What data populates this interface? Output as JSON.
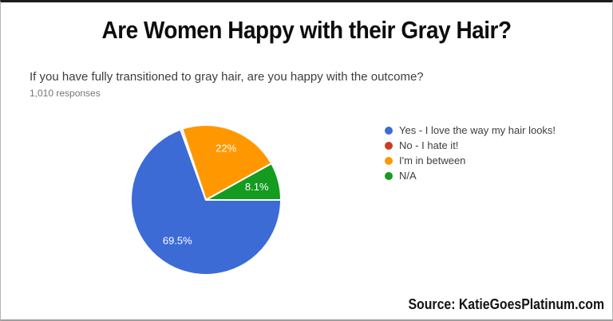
{
  "header": {
    "title": "Are Women Happy with their Gray Hair?"
  },
  "chart_data": {
    "type": "pie",
    "title": "If you have fully transitioned to gray hair, are you happy with the outcome?",
    "responses_note": "1,010 responses",
    "legend_position": "right",
    "start_angle": "east",
    "direction": "clockwise",
    "slices": [
      {
        "label": "Yes - I love the way my hair looks!",
        "value": 69.5,
        "pct_label": "69.5%",
        "color": "#3C6BD6",
        "show_label": true,
        "label_r": 0.66
      },
      {
        "label": "No - I hate it!",
        "value": 0.4,
        "pct_label": "",
        "color": "#CE3B26",
        "show_label": false,
        "label_r": 0.7
      },
      {
        "label": "I'm in between",
        "value": 22.0,
        "pct_label": "22%",
        "color": "#FF9800",
        "show_label": true,
        "label_r": 0.74
      },
      {
        "label": "N/A",
        "value": 8.1,
        "pct_label": "8.1%",
        "color": "#149B20",
        "show_label": true,
        "label_r": 0.7
      }
    ]
  },
  "footer": {
    "source": "Source: KatieGoesPlatinum.com"
  }
}
